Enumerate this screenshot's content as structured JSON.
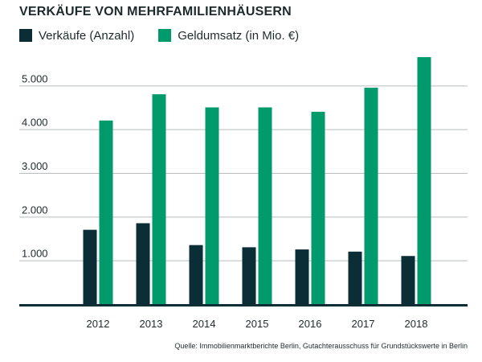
{
  "title": "VERKÄUFE VON MEHRFAMILIENHÄUSERN",
  "legend": {
    "sales": "Verkäufe (Anzahl)",
    "revenue": "Geldumsatz (in Mio. €)"
  },
  "source": "Quelle: Immobilienmarktberichte Berlin, Gutachterausschuss für Grundstückswerte in Berlin",
  "colors": {
    "sales": "#0b2d35",
    "revenue": "#009a6c",
    "grid": "#b9bdbd",
    "baseline": "#0b2d35"
  },
  "chart_data": {
    "type": "bar",
    "categories": [
      "2012",
      "2013",
      "2014",
      "2015",
      "2016",
      "2017",
      "2018"
    ],
    "series": [
      {
        "name": "Verkäufe (Anzahl)",
        "values": [
          1700,
          1850,
          1350,
          1300,
          1250,
          1200,
          1100
        ]
      },
      {
        "name": "Geldumsatz (in Mio. €)",
        "values": [
          4200,
          4800,
          4500,
          4500,
          4400,
          4950,
          5650
        ]
      }
    ],
    "yticks": [
      "1.000",
      "2.000",
      "3.000",
      "4.000",
      "5.000"
    ],
    "ytick_values": [
      1000,
      2000,
      3000,
      4000,
      5000
    ],
    "ylim": [
      0,
      5650
    ],
    "grid": true,
    "legend_position": "top-left"
  }
}
